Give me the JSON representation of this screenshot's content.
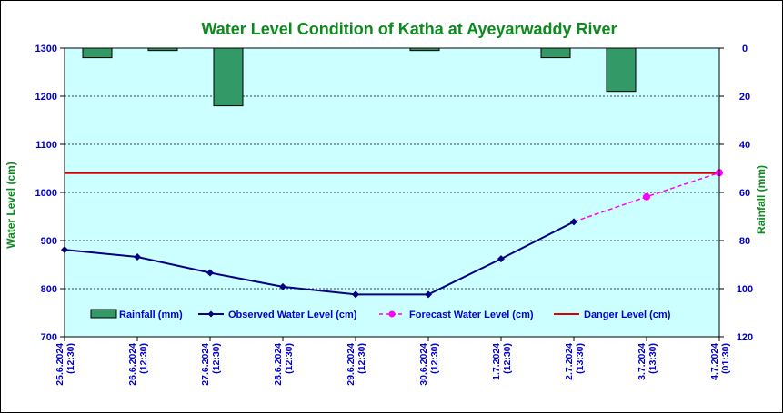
{
  "chart_data": {
    "type": "line",
    "title": "Water Level Condition of Katha at Ayeyarwaddy River",
    "ylabel": "Water Level (cm)",
    "y2label": "Rainfall (mm)",
    "ylim": [
      700,
      1300
    ],
    "yticks": [
      "700",
      "800",
      "900",
      "1000",
      "1100",
      "1200",
      "1300"
    ],
    "y2lim": [
      0,
      120
    ],
    "y2ticks": [
      "0",
      "20",
      "40",
      "60",
      "80",
      "100",
      "120"
    ],
    "categories": [
      [
        "25.6.2024",
        "(12:30)"
      ],
      [
        "26.6.2024",
        "(12:30)"
      ],
      [
        "27.6.2024",
        "(12:30)"
      ],
      [
        "28.6.2024",
        "(12:30)"
      ],
      [
        "29.6.2024",
        "(12:30)"
      ],
      [
        "30.6.2024",
        "(12:30)"
      ],
      [
        "1.7.2024",
        "(12:30)"
      ],
      [
        "2.7.2024",
        "(13:30)"
      ],
      [
        "3.7.2024",
        "(13:30)"
      ],
      [
        "4.7.2024",
        "(01:30)"
      ]
    ],
    "series": [
      {
        "name": "Rainfall (mm)",
        "kind": "bar",
        "axis": "right",
        "color": "#339966",
        "values": [
          4,
          1,
          24,
          null,
          null,
          1,
          null,
          4,
          18,
          null
        ]
      },
      {
        "name": "Observed Water Level (cm)",
        "kind": "line",
        "axis": "left",
        "color": "#000080",
        "values": [
          881,
          866,
          833,
          804,
          788,
          788,
          862,
          939,
          null,
          null
        ]
      },
      {
        "name": "Forecast Water Level (cm)",
        "kind": "dashed-line",
        "axis": "left",
        "color": "#ff00ff",
        "values": [
          null,
          null,
          null,
          null,
          null,
          null,
          null,
          939,
          991,
          1041
        ]
      },
      {
        "name": "Danger Level (cm)",
        "kind": "hline",
        "axis": "left",
        "color": "#dd0000",
        "value": 1040
      }
    ],
    "grid": "horizontal dashed",
    "plot_background": "#ccffff",
    "legend_position": "bottom-inside"
  }
}
